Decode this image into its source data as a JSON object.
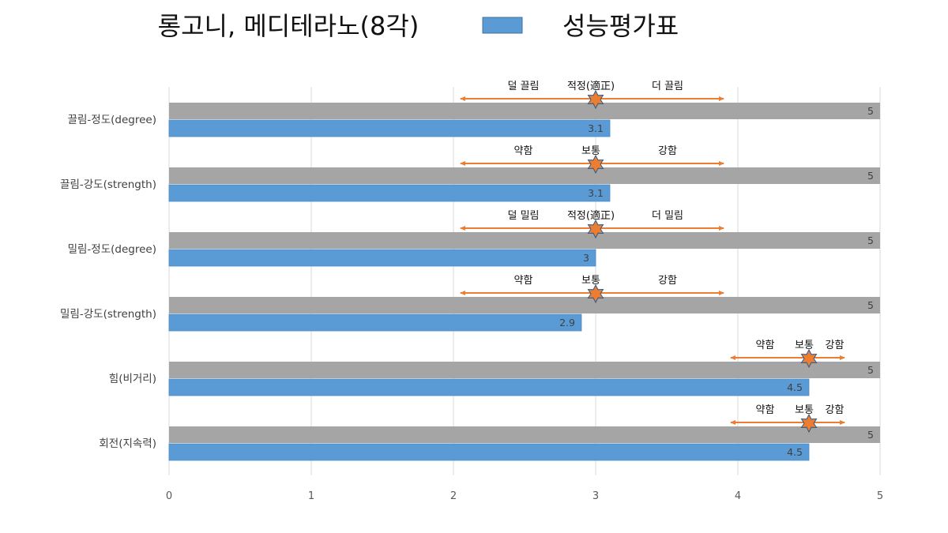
{
  "chart_data": {
    "type": "bar",
    "orientation": "horizontal",
    "title": "롱고니, 메디테라노(8각)",
    "categories": [
      "끌림-정도(degree)",
      "끌림-강도(strength)",
      "밀림-정도(degree)",
      "밀림-강도(strength)",
      "힘(비거리)",
      "회전(지속력)"
    ],
    "series": [
      {
        "name": "",
        "color": "#A5A5A5",
        "values": [
          5,
          5,
          5,
          5,
          5,
          5
        ]
      },
      {
        "name": "성능평가표",
        "color": "#5B9BD5",
        "values": [
          3.1,
          3.1,
          3,
          2.9,
          4.5,
          4.5
        ]
      }
    ],
    "series_label_text": [
      [
        "5",
        "5",
        "5",
        "5",
        "5",
        "5"
      ],
      [
        "3.1",
        "3.1",
        "3",
        "2.9",
        "4.5",
        "4.5"
      ]
    ],
    "xlim": [
      0,
      5
    ],
    "x_ticks": [
      0,
      1,
      2,
      3,
      4,
      5
    ],
    "x_tick_labels": [
      "0",
      "1",
      "2",
      "3",
      "4",
      "5"
    ],
    "grid": "vertical",
    "legend": {
      "placement": "top",
      "entries": [
        "성능평가표"
      ]
    },
    "annotations": [
      {
        "left_label": "덜 끌림",
        "center_label": "적정(適正)",
        "right_label": "더 끌림",
        "marker_value": 3,
        "arrow_from": 2.05,
        "arrow_to": 3.9
      },
      {
        "left_label": "약함",
        "center_label": "보통",
        "right_label": "강함",
        "marker_value": 3,
        "arrow_from": 2.05,
        "arrow_to": 3.9
      },
      {
        "left_label": "덜 밀림",
        "center_label": "적정(適正)",
        "right_label": "더 밀림",
        "marker_value": 3,
        "arrow_from": 2.05,
        "arrow_to": 3.9
      },
      {
        "left_label": "약함",
        "center_label": "보통",
        "right_label": "강함",
        "marker_value": 3,
        "arrow_from": 2.05,
        "arrow_to": 3.9
      },
      {
        "left_label": "약함",
        "center_label": "보통",
        "right_label": "강함",
        "marker_value": 4.5,
        "arrow_from": 3.95,
        "arrow_to": 4.75
      },
      {
        "left_label": "약함",
        "center_label": "보통",
        "right_label": "강함",
        "marker_value": 4.5,
        "arrow_from": 3.95,
        "arrow_to": 4.75
      }
    ],
    "annotation_color": "#ED7D31"
  }
}
